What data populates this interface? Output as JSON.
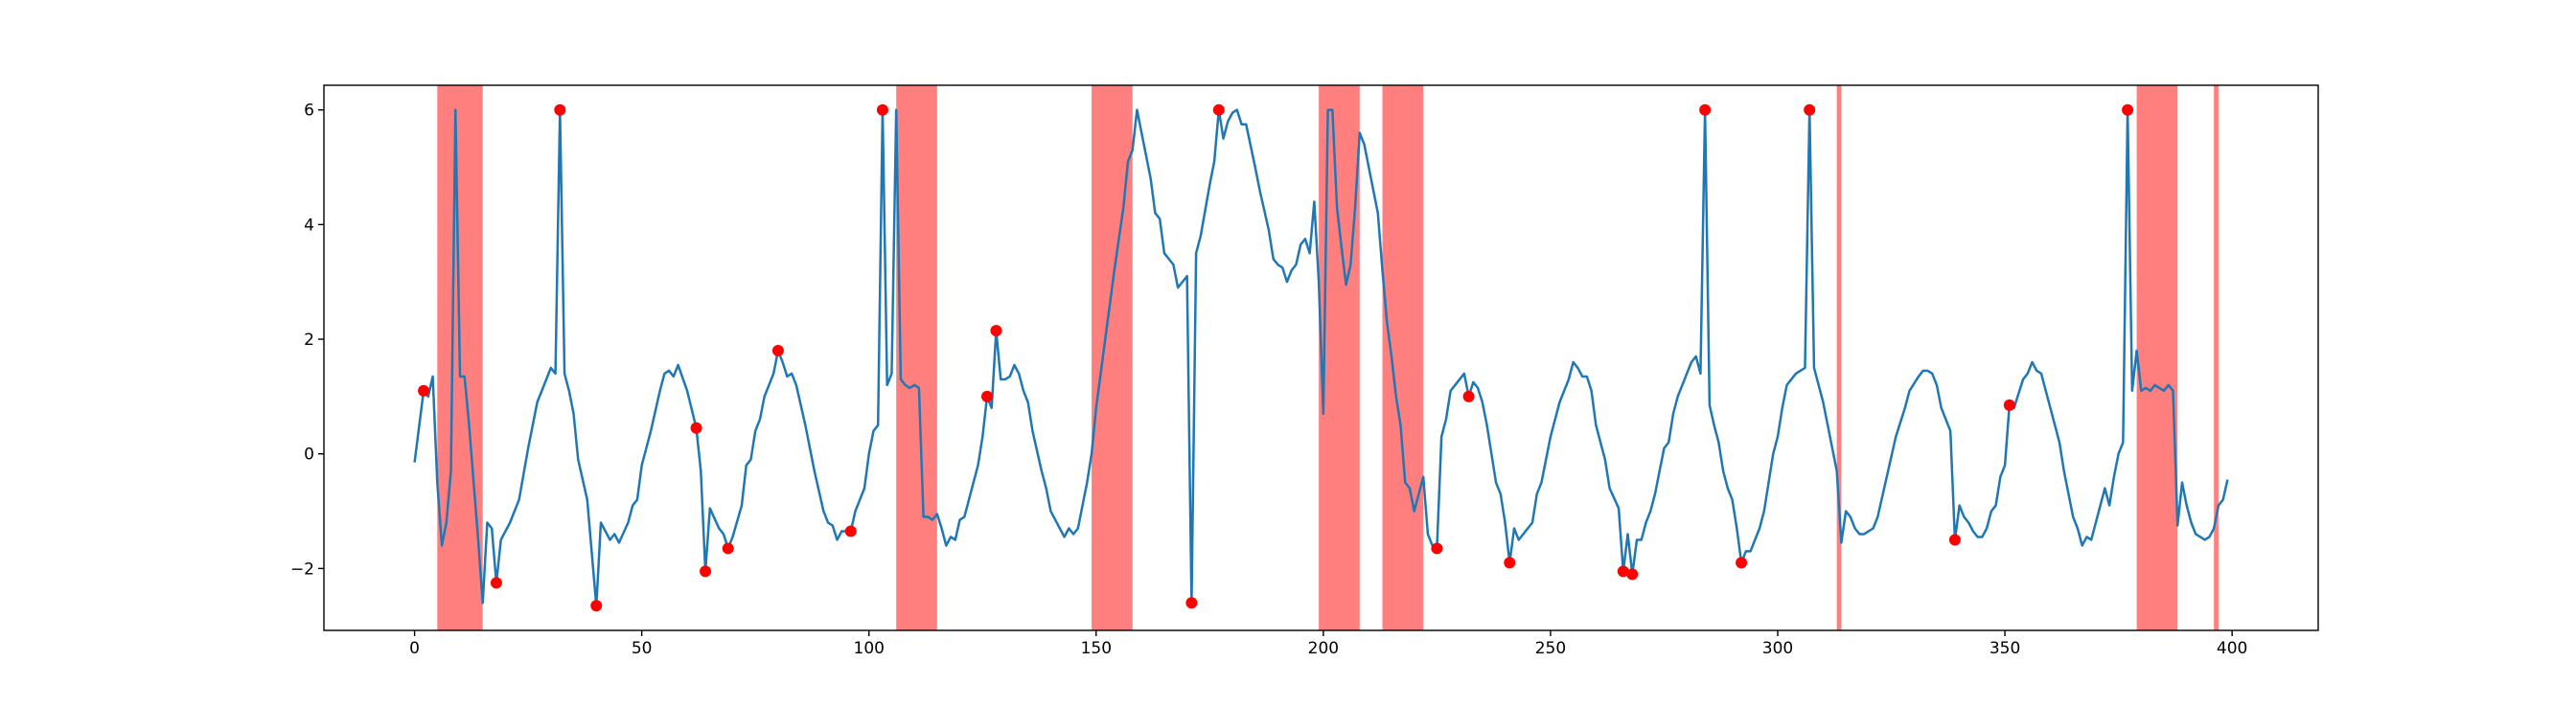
{
  "chart_data": {
    "type": "line",
    "xlim": [
      -19.95,
      418.95
    ],
    "ylim": [
      -3.08,
      6.43
    ],
    "xticks": [
      0,
      50,
      100,
      150,
      200,
      250,
      300,
      350,
      400
    ],
    "yticks": [
      {
        "value": -2,
        "label": "−2"
      },
      0,
      2,
      4,
      6
    ],
    "spans": {
      "color": "#ff0000",
      "alpha": 0.5,
      "ranges": [
        [
          5,
          15
        ],
        [
          106,
          115
        ],
        [
          149,
          158
        ],
        [
          199,
          208
        ],
        [
          213,
          222
        ],
        [
          313,
          314
        ],
        [
          379,
          388
        ],
        [
          396,
          397
        ]
      ]
    },
    "series": [
      {
        "color": "#1f77b4",
        "x": [
          0,
          2,
          3,
          4,
          5,
          6,
          7,
          8,
          9,
          10,
          11,
          12,
          13,
          14,
          15,
          16,
          17,
          18,
          19,
          21,
          23,
          25,
          27,
          29,
          30,
          31,
          32,
          33,
          34,
          35,
          36,
          38,
          40,
          41,
          43,
          44,
          45,
          47,
          48,
          49,
          50,
          52,
          54,
          55,
          56,
          57,
          58,
          60,
          62,
          63,
          64,
          65,
          67,
          68,
          69,
          70,
          72,
          73,
          74,
          75,
          76,
          77,
          78,
          79,
          80,
          81,
          82,
          83,
          84,
          86,
          88,
          90,
          91,
          92,
          93,
          94,
          96,
          97,
          99,
          100,
          101,
          102,
          103,
          104,
          105,
          106,
          107,
          108,
          109,
          110,
          111,
          112,
          113,
          114,
          115,
          116,
          117,
          118,
          119,
          120,
          121,
          123,
          124,
          125,
          126,
          127,
          128,
          129,
          130,
          131,
          132,
          133,
          134,
          135,
          136,
          138,
          139,
          140,
          142,
          143,
          144,
          145,
          146,
          148,
          149,
          150,
          152,
          154,
          156,
          157,
          158,
          159,
          160,
          162,
          163,
          164,
          165,
          167,
          168,
          169,
          170,
          171,
          172,
          173,
          175,
          176,
          177,
          178,
          179,
          180,
          181,
          182,
          183,
          185,
          186,
          188,
          189,
          190,
          191,
          192,
          193,
          194,
          195,
          196,
          197,
          198,
          199,
          200,
          201,
          202,
          203,
          204,
          205,
          206,
          207,
          208,
          209,
          210,
          212,
          213,
          214,
          215,
          216,
          217,
          218,
          219,
          220,
          221,
          222,
          223,
          224,
          225,
          226,
          227,
          228,
          229,
          230,
          231,
          232,
          233,
          234,
          235,
          236,
          237,
          238,
          239,
          240,
          241,
          242,
          243,
          245,
          246,
          247,
          248,
          249,
          250,
          252,
          254,
          255,
          256,
          257,
          258,
          259,
          260,
          261,
          262,
          263,
          265,
          266,
          267,
          268,
          269,
          270,
          271,
          272,
          273,
          274,
          275,
          276,
          277,
          278,
          279,
          280,
          281,
          282,
          283,
          284,
          285,
          286,
          287,
          288,
          289,
          290,
          291,
          292,
          293,
          294,
          295,
          296,
          297,
          298,
          299,
          300,
          301,
          302,
          303,
          304,
          305,
          306,
          307,
          308,
          309,
          310,
          311,
          312,
          313,
          314,
          315,
          316,
          317,
          318,
          319,
          321,
          322,
          324,
          326,
          328,
          329,
          331,
          332,
          333,
          334,
          335,
          336,
          337,
          338,
          339,
          340,
          341,
          342,
          343,
          344,
          345,
          346,
          347,
          348,
          349,
          350,
          351,
          352,
          353,
          354,
          355,
          356,
          357,
          358,
          359,
          360,
          361,
          362,
          363,
          364,
          365,
          366,
          367,
          368,
          369,
          370,
          371,
          372,
          373,
          374,
          375,
          376,
          377,
          378,
          379,
          380,
          381,
          382,
          383,
          384,
          385,
          386,
          387,
          388,
          389,
          390,
          391,
          392,
          393,
          394,
          395,
          396,
          397,
          398,
          399
        ],
        "values": [
          -0.15,
          1.1,
          1.0,
          1.35,
          -0.5,
          -1.6,
          -1.2,
          -0.3,
          6.0,
          1.35,
          1.35,
          0.5,
          -0.5,
          -1.5,
          -2.6,
          -1.2,
          -1.3,
          -2.25,
          -1.5,
          -1.2,
          -0.8,
          0.1,
          0.9,
          1.3,
          1.5,
          1.4,
          6.0,
          1.4,
          1.1,
          0.7,
          -0.1,
          -0.8,
          -2.65,
          -1.2,
          -1.5,
          -1.4,
          -1.55,
          -1.2,
          -0.9,
          -0.8,
          -0.2,
          0.4,
          1.1,
          1.4,
          1.45,
          1.35,
          1.55,
          1.1,
          0.45,
          -0.3,
          -2.05,
          -0.95,
          -1.3,
          -1.4,
          -1.65,
          -1.45,
          -0.9,
          -0.2,
          -0.1,
          0.4,
          0.6,
          1.0,
          1.2,
          1.4,
          1.8,
          1.6,
          1.35,
          1.4,
          1.2,
          0.5,
          -0.3,
          -1.0,
          -1.2,
          -1.25,
          -1.5,
          -1.35,
          -1.35,
          -1.0,
          -0.6,
          0.0,
          0.4,
          0.5,
          6.0,
          1.2,
          1.4,
          6.0,
          1.3,
          1.2,
          1.15,
          1.2,
          1.15,
          -1.1,
          -1.1,
          -1.15,
          -1.05,
          -1.3,
          -1.6,
          -1.45,
          -1.5,
          -1.15,
          -1.1,
          -0.5,
          -0.2,
          0.3,
          1.0,
          0.8,
          2.15,
          1.3,
          1.3,
          1.35,
          1.55,
          1.4,
          1.1,
          0.9,
          0.4,
          -0.3,
          -0.6,
          -1.0,
          -1.3,
          -1.45,
          -1.3,
          -1.4,
          -1.3,
          -0.5,
          0.0,
          0.8,
          2.0,
          3.2,
          4.3,
          5.1,
          5.3,
          6.0,
          5.6,
          4.8,
          4.2,
          4.1,
          3.5,
          3.3,
          2.9,
          3.0,
          3.1,
          -2.6,
          3.5,
          3.8,
          4.7,
          5.1,
          6.0,
          5.5,
          5.8,
          5.95,
          6.0,
          5.75,
          5.75,
          5.0,
          4.6,
          3.9,
          3.4,
          3.3,
          3.25,
          3.0,
          3.2,
          3.3,
          3.65,
          3.75,
          3.5,
          4.4,
          3.0,
          0.7,
          6.0,
          6.0,
          4.3,
          3.6,
          2.95,
          3.3,
          4.3,
          5.6,
          5.4,
          5.0,
          4.2,
          3.2,
          2.3,
          1.7,
          1.0,
          0.5,
          -0.5,
          -0.6,
          -1.0,
          -0.7,
          -0.4,
          -1.4,
          -1.6,
          -1.65,
          0.3,
          0.6,
          1.1,
          1.2,
          1.3,
          1.4,
          1.0,
          1.25,
          1.15,
          0.9,
          0.5,
          0.0,
          -0.5,
          -0.7,
          -1.2,
          -1.9,
          -1.3,
          -1.5,
          -1.3,
          -1.2,
          -0.7,
          -0.5,
          -0.1,
          0.3,
          0.9,
          1.3,
          1.6,
          1.5,
          1.35,
          1.35,
          1.1,
          0.5,
          0.2,
          -0.1,
          -0.6,
          -0.95,
          -2.05,
          -1.4,
          -2.1,
          -1.5,
          -1.5,
          -1.2,
          -1.0,
          -0.7,
          -0.3,
          0.1,
          0.2,
          0.7,
          1.0,
          1.2,
          1.4,
          1.6,
          1.7,
          1.4,
          6.0,
          0.85,
          0.5,
          0.2,
          -0.3,
          -0.6,
          -0.8,
          -1.3,
          -1.9,
          -1.7,
          -1.7,
          -1.5,
          -1.3,
          -1.0,
          -0.5,
          0.0,
          0.3,
          0.8,
          1.2,
          1.3,
          1.4,
          1.45,
          1.5,
          6.0,
          1.5,
          1.2,
          0.9,
          0.5,
          0.1,
          -0.3,
          -1.55,
          -1.0,
          -1.1,
          -1.3,
          -1.4,
          -1.4,
          -1.3,
          -1.1,
          -0.4,
          0.3,
          0.8,
          1.1,
          1.35,
          1.45,
          1.45,
          1.4,
          1.2,
          0.8,
          0.6,
          0.4,
          -1.5,
          -0.9,
          -1.1,
          -1.2,
          -1.35,
          -1.45,
          -1.45,
          -1.3,
          -1.0,
          -0.9,
          -0.4,
          -0.2,
          0.85,
          0.8,
          1.05,
          1.3,
          1.4,
          1.6,
          1.45,
          1.4,
          1.1,
          0.8,
          0.5,
          0.2,
          -0.3,
          -0.7,
          -1.1,
          -1.3,
          -1.6,
          -1.45,
          -1.5,
          -1.2,
          -0.9,
          -0.6,
          -0.9,
          -0.4,
          0.0,
          0.2,
          6.0,
          1.1,
          1.8,
          1.1,
          1.15,
          1.1,
          1.2,
          1.15,
          1.1,
          1.2,
          1.1,
          -1.25,
          -0.5,
          -0.9,
          -1.2,
          -1.4,
          -1.45,
          -1.5,
          -1.45,
          -1.3,
          -0.9,
          -0.8,
          -0.45
        ]
      },
      {
        "color": "#ff0000",
        "marker": "o",
        "x": [
          2,
          18,
          32,
          40,
          62,
          64,
          69,
          80,
          96,
          103,
          126,
          128,
          171,
          177,
          225,
          232,
          241,
          266,
          268,
          284,
          292,
          307,
          339,
          351,
          377
        ],
        "values": [
          1.1,
          -2.25,
          6.0,
          -2.65,
          0.45,
          -2.05,
          -1.65,
          1.8,
          -1.35,
          6.0,
          1.0,
          2.15,
          -2.6,
          6.0,
          -1.65,
          1.0,
          -1.9,
          -2.05,
          -2.1,
          6.0,
          -1.9,
          6.0,
          -1.5,
          0.85,
          6.0
        ]
      }
    ]
  }
}
